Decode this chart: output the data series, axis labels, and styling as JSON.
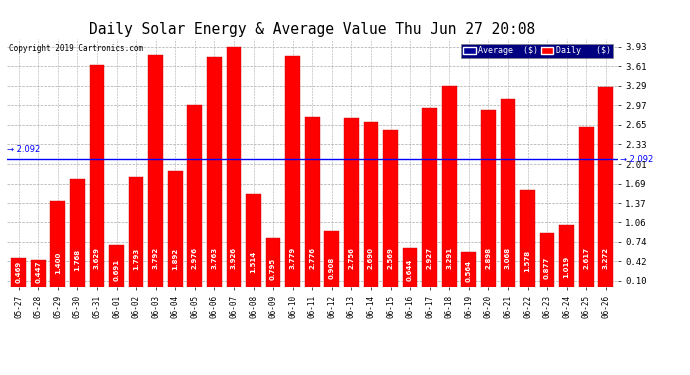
{
  "title": "Daily Solar Energy & Average Value Thu Jun 27 20:08",
  "copyright": "Copyright 2019 Cartronics.com",
  "average_value": 2.092,
  "categories": [
    "05-27",
    "05-28",
    "05-29",
    "05-30",
    "05-31",
    "06-01",
    "06-02",
    "06-03",
    "06-04",
    "06-05",
    "06-06",
    "06-07",
    "06-08",
    "06-09",
    "06-10",
    "06-11",
    "06-12",
    "06-13",
    "06-14",
    "06-15",
    "06-16",
    "06-17",
    "06-18",
    "06-19",
    "06-20",
    "06-21",
    "06-22",
    "06-23",
    "06-24",
    "06-25",
    "06-26"
  ],
  "values": [
    0.469,
    0.447,
    1.4,
    1.768,
    3.629,
    0.691,
    1.793,
    3.792,
    1.892,
    2.976,
    3.763,
    3.926,
    1.514,
    0.795,
    3.779,
    2.776,
    0.908,
    2.756,
    2.69,
    2.569,
    0.644,
    2.927,
    3.291,
    0.564,
    2.898,
    3.068,
    1.578,
    0.877,
    1.019,
    2.617,
    3.272
  ],
  "bar_color": "#ff0000",
  "bar_edge_color": "#cc0000",
  "avg_line_color": "#0000ff",
  "background_color": "#ffffff",
  "grid_color": "#aaaaaa",
  "yticks": [
    0.1,
    0.42,
    0.74,
    1.06,
    1.37,
    1.69,
    2.01,
    2.33,
    2.65,
    2.97,
    3.29,
    3.61,
    3.93
  ],
  "ylim": [
    0.0,
    4.05
  ],
  "legend_avg_color": "#000099",
  "legend_daily_color": "#ff0000",
  "value_fontsize": 5.0,
  "title_fontsize": 10.5
}
